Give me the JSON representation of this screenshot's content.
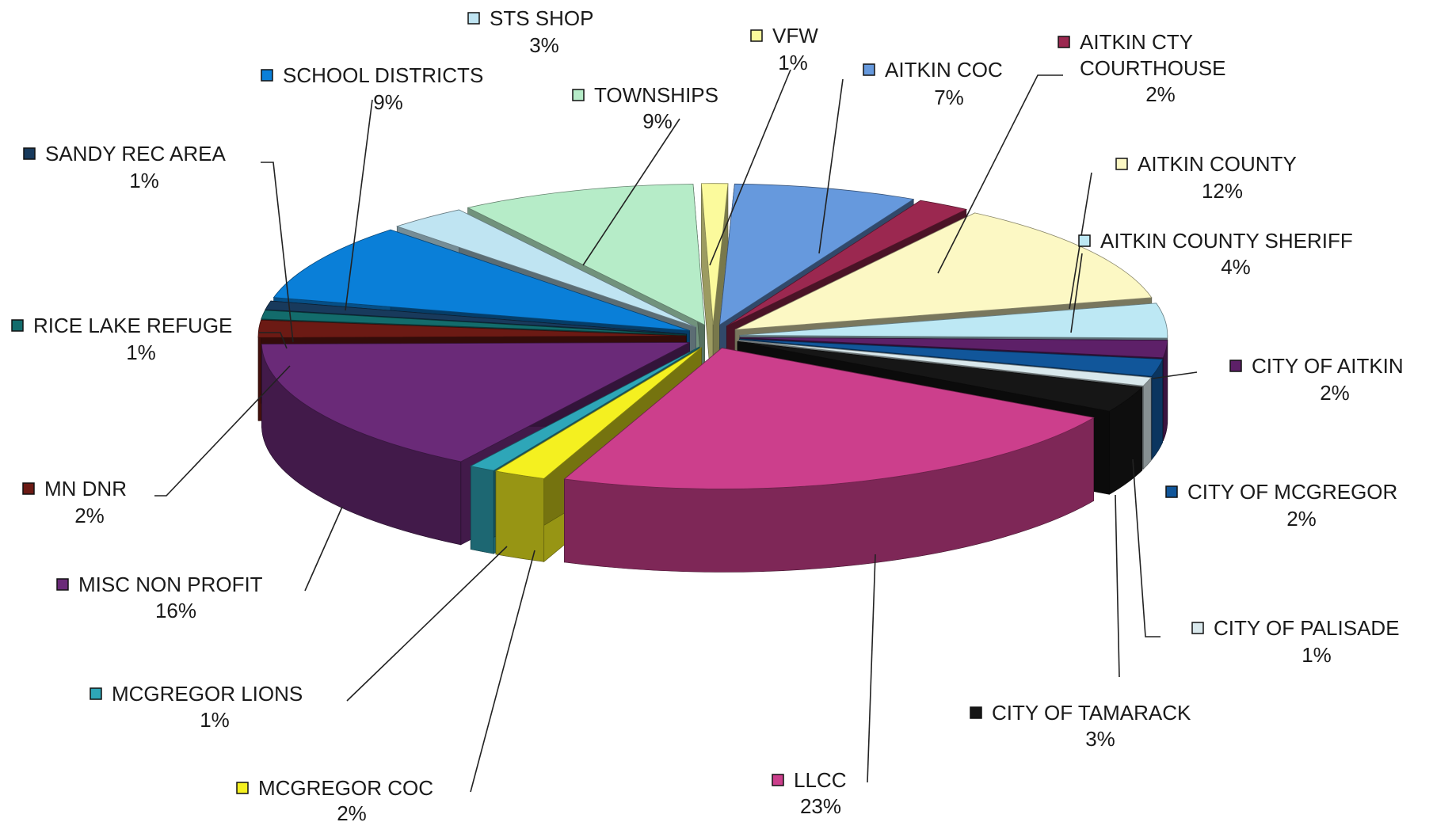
{
  "chart_data": {
    "type": "pie",
    "title": "",
    "slices": [
      {
        "label": "AITKIN COC",
        "pct_label": "7%",
        "value": 7,
        "color": "#6699dd"
      },
      {
        "label": "AITKIN CTY COURTHOUSE",
        "label_lines": [
          "AITKIN CTY",
          "COURTHOUSE"
        ],
        "pct_label": "2%",
        "value": 2,
        "color": "#9b2850"
      },
      {
        "label": "AITKIN COUNTY",
        "pct_label": "12%",
        "value": 12,
        "color": "#fcf8c4"
      },
      {
        "label": "AITKIN COUNTY SHERIFF",
        "pct_label": "4%",
        "value": 4,
        "color": "#bde8f4"
      },
      {
        "label": "CITY OF AITKIN",
        "pct_label": "2%",
        "value": 2,
        "color": "#5d2068"
      },
      {
        "label": "CITY OF MCGREGOR",
        "pct_label": "2%",
        "value": 2,
        "color": "#11569a"
      },
      {
        "label": "CITY OF PALISADE",
        "pct_label": "1%",
        "value": 1,
        "color": "#d9e8ec"
      },
      {
        "label": "CITY OF TAMARACK",
        "pct_label": "3%",
        "value": 3,
        "color": "#161616"
      },
      {
        "label": "LLCC",
        "pct_label": "23%",
        "value": 23,
        "color": "#cc3f8c"
      },
      {
        "label": "MCGREGOR COC",
        "pct_label": "2%",
        "value": 2,
        "color": "#f4f020"
      },
      {
        "label": "MCGREGOR LIONS",
        "pct_label": "1%",
        "value": 1,
        "color": "#2ea6b8"
      },
      {
        "label": "MISC NON PROFIT",
        "pct_label": "16%",
        "value": 16,
        "color": "#6a2a78"
      },
      {
        "label": "MN DNR",
        "pct_label": "2%",
        "value": 2,
        "color": "#6c1a14"
      },
      {
        "label": "RICE LAKE REFUGE",
        "pct_label": "1%",
        "value": 1,
        "color": "#136c6c"
      },
      {
        "label": "SANDY REC AREA",
        "pct_label": "1%",
        "value": 1,
        "color": "#183a5c"
      },
      {
        "label": "SCHOOL DISTRICTS",
        "pct_label": "9%",
        "value": 9,
        "color": "#0a7fd8"
      },
      {
        "label": "STS SHOP",
        "pct_label": "3%",
        "value": 3,
        "color": "#bfe4f2"
      },
      {
        "label": "TOWNSHIPS",
        "pct_label": "9%",
        "value": 9,
        "color": "#b6ecc8"
      },
      {
        "label": "VFW",
        "pct_label": "1%",
        "value": 1,
        "color": "#fbfa9c"
      }
    ],
    "legend": "none",
    "style": "3d-exploded-pie"
  }
}
